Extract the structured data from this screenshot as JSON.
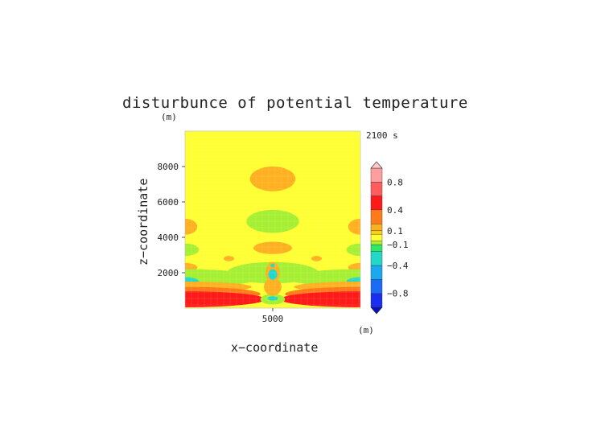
{
  "chart_data": {
    "type": "heatmap",
    "title": "disturbunce of potential temperature",
    "time_label": "2100 s",
    "xlabel": "x−coordinate",
    "ylabel": "z−coordinate",
    "x_unit": "(m)",
    "y_unit": "(m)",
    "xlim": [
      0,
      10000
    ],
    "ylim": [
      0,
      10000
    ],
    "x_ticks": [
      {
        "value": 5000,
        "label": "5000"
      }
    ],
    "y_ticks": [
      {
        "value": 2000,
        "label": "2000"
      },
      {
        "value": 4000,
        "label": "4000"
      },
      {
        "value": 6000,
        "label": "6000"
      },
      {
        "value": 8000,
        "label": "8000"
      }
    ],
    "background_level": 0.0,
    "colorbar": {
      "labels": [
        {
          "value": 0.8,
          "label": "0.8"
        },
        {
          "value": 0.4,
          "label": "0.4"
        },
        {
          "value": 0.1,
          "label": "0.1"
        },
        {
          "value": -0.1,
          "label": "−0.1"
        },
        {
          "value": -0.4,
          "label": "−0.4"
        },
        {
          "value": -0.8,
          "label": "−0.8"
        }
      ],
      "bands": [
        {
          "from": 0.8,
          "to": 1.0,
          "color": "#ff9e9e"
        },
        {
          "from": 0.6,
          "to": 0.8,
          "color": "#ff5c5c"
        },
        {
          "from": 0.4,
          "to": 0.6,
          "color": "#ff1a1a"
        },
        {
          "from": 0.2,
          "to": 0.4,
          "color": "#ff7a1a"
        },
        {
          "from": 0.1,
          "to": 0.2,
          "color": "#ffb020"
        },
        {
          "from": 0.05,
          "to": 0.1,
          "color": "#ffd11a"
        },
        {
          "from": -0.05,
          "to": 0.05,
          "color": "#ffff33"
        },
        {
          "from": -0.1,
          "to": -0.05,
          "color": "#a6f033"
        },
        {
          "from": -0.2,
          "to": -0.1,
          "color": "#2ee866"
        },
        {
          "from": -0.4,
          "to": -0.2,
          "color": "#22d8c8"
        },
        {
          "from": -0.6,
          "to": -0.4,
          "color": "#1aa8f0"
        },
        {
          "from": -0.8,
          "to": -0.6,
          "color": "#1a6cf5"
        },
        {
          "from": -1.0,
          "to": -0.8,
          "color": "#1a2ef0"
        }
      ],
      "over_color": "#ffc8c8",
      "under_color": "#0a10c0"
    },
    "features": [
      {
        "shape": "ellipse",
        "cx": 5000,
        "cz": 7300,
        "rx": 1300,
        "rz": 700,
        "value": 0.12
      },
      {
        "shape": "ellipse",
        "cx": 5000,
        "cz": 4900,
        "rx": 1500,
        "rz": 650,
        "value": -0.07
      },
      {
        "shape": "ellipse",
        "cx": 0,
        "cz": 4600,
        "rx": 700,
        "rz": 450,
        "value": 0.12
      },
      {
        "shape": "ellipse",
        "cx": 10000,
        "cz": 4600,
        "rx": 700,
        "rz": 450,
        "value": 0.12
      },
      {
        "shape": "ellipse",
        "cx": 5000,
        "cz": 3400,
        "rx": 1100,
        "rz": 350,
        "value": 0.12
      },
      {
        "shape": "ellipse",
        "cx": 0,
        "cz": 3300,
        "rx": 800,
        "rz": 350,
        "value": -0.07
      },
      {
        "shape": "ellipse",
        "cx": 10000,
        "cz": 3300,
        "rx": 800,
        "rz": 350,
        "value": -0.07
      },
      {
        "shape": "ellipse",
        "cx": 2500,
        "cz": 2800,
        "rx": 300,
        "rz": 150,
        "value": 0.12
      },
      {
        "shape": "ellipse",
        "cx": 7500,
        "cz": 2800,
        "rx": 300,
        "rz": 150,
        "value": 0.12
      },
      {
        "shape": "ellipse",
        "cx": 0,
        "cz": 2300,
        "rx": 700,
        "rz": 250,
        "value": 0.12
      },
      {
        "shape": "ellipse",
        "cx": 10000,
        "cz": 2300,
        "rx": 700,
        "rz": 250,
        "value": 0.12
      },
      {
        "shape": "ellipse",
        "cx": 5000,
        "cz": 2000,
        "rx": 2600,
        "rz": 600,
        "value": -0.07
      },
      {
        "shape": "ellipse",
        "cx": 0,
        "cz": 1700,
        "rx": 4200,
        "rz": 500,
        "value": -0.07
      },
      {
        "shape": "ellipse",
        "cx": 10000,
        "cz": 1700,
        "rx": 4200,
        "rz": 500,
        "value": -0.07
      },
      {
        "shape": "ellipse",
        "cx": 0,
        "cz": 1500,
        "rx": 800,
        "rz": 250,
        "value": -0.3
      },
      {
        "shape": "ellipse",
        "cx": 10000,
        "cz": 1500,
        "rx": 800,
        "rz": 250,
        "value": -0.3
      },
      {
        "shape": "ellipse",
        "cx": 0,
        "cz": 1200,
        "rx": 3800,
        "rz": 300,
        "value": 0.12
      },
      {
        "shape": "ellipse",
        "cx": 10000,
        "cz": 1200,
        "rx": 3800,
        "rz": 300,
        "value": 0.12
      },
      {
        "shape": "ellipse",
        "cx": 0,
        "cz": 800,
        "rx": 4300,
        "rz": 400,
        "value": 0.3
      },
      {
        "shape": "ellipse",
        "cx": 10000,
        "cz": 800,
        "rx": 4300,
        "rz": 400,
        "value": 0.3
      },
      {
        "shape": "ellipse",
        "cx": 0,
        "cz": 500,
        "rx": 4600,
        "rz": 450,
        "value": 0.5
      },
      {
        "shape": "ellipse",
        "cx": 10000,
        "cz": 500,
        "rx": 4600,
        "rz": 450,
        "value": 0.5
      },
      {
        "shape": "ellipse",
        "cx": 5000,
        "cz": 500,
        "rx": 700,
        "rz": 300,
        "value": -0.07
      },
      {
        "shape": "ellipse",
        "cx": 5000,
        "cz": 1200,
        "rx": 500,
        "rz": 500,
        "value": 0.12
      },
      {
        "shape": "ellipse",
        "cx": 5000,
        "cz": 2000,
        "rx": 400,
        "rz": 600,
        "value": 0.12
      },
      {
        "shape": "ellipse",
        "cx": 5000,
        "cz": 1900,
        "rx": 250,
        "rz": 300,
        "value": -0.3
      },
      {
        "shape": "ellipse",
        "cx": 5000,
        "cz": 2400,
        "rx": 120,
        "rz": 100,
        "value": -0.3
      },
      {
        "shape": "ellipse",
        "cx": 5000,
        "cz": 550,
        "rx": 300,
        "rz": 120,
        "value": -0.3
      }
    ]
  }
}
